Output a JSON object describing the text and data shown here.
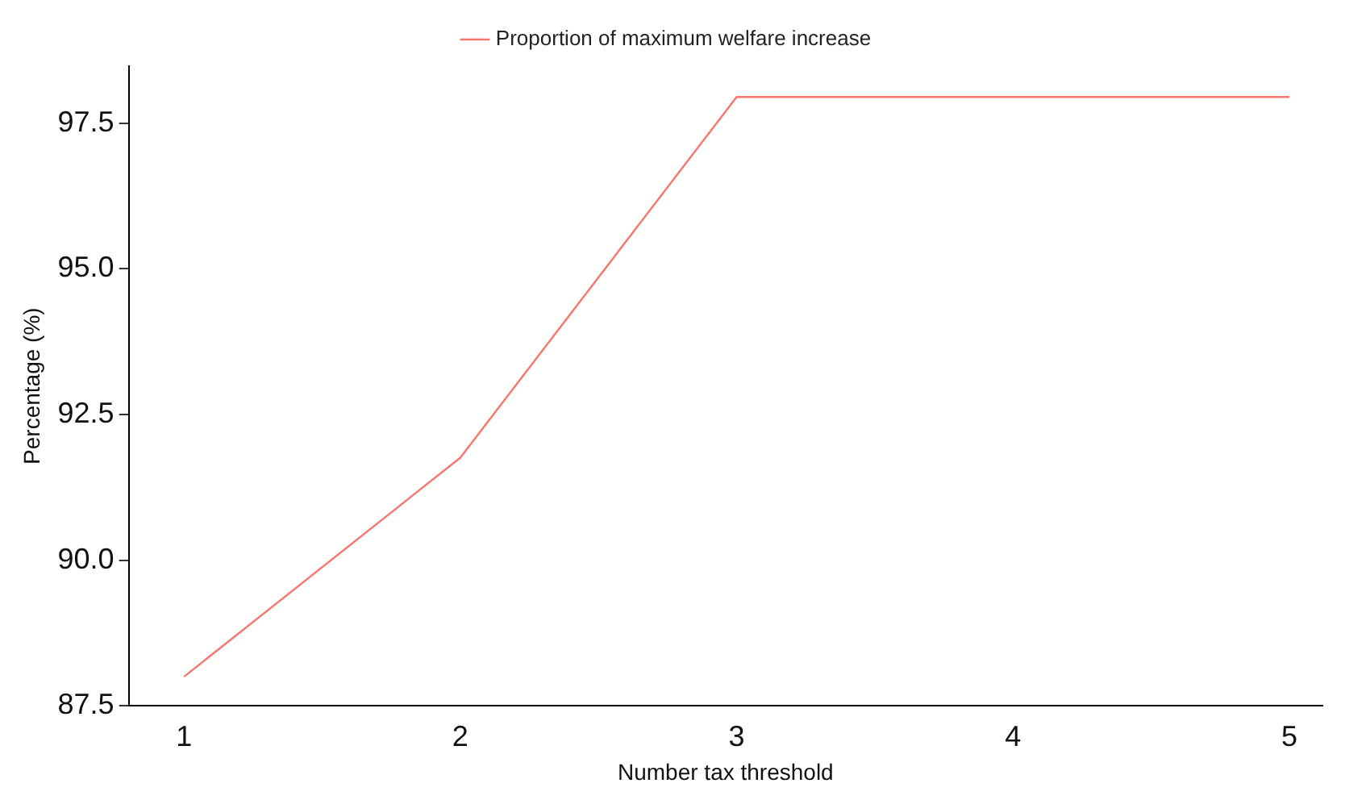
{
  "chart_data": {
    "type": "line",
    "xlabel": "Number tax threshold",
    "ylabel": "Percentage (%)",
    "x": [
      1,
      2,
      3,
      4,
      5
    ],
    "series": [
      {
        "name": "Proportion of maximum welfare increase",
        "color": "#f8766d",
        "values": [
          88.0,
          91.76,
          97.95,
          97.95,
          97.95
        ]
      }
    ],
    "xlim": [
      0.8,
      5.12
    ],
    "xticks": [
      1,
      2,
      3,
      4,
      5
    ],
    "ylim": [
      87.5,
      98.48
    ],
    "yticks": [
      87.5,
      {
        "value": 90,
        "label": "90.0"
      },
      92.5,
      {
        "value": 95,
        "label": "95.0"
      },
      97.5
    ],
    "grid": false,
    "legend": "top",
    "marker": "none",
    "line_style": "solid"
  }
}
